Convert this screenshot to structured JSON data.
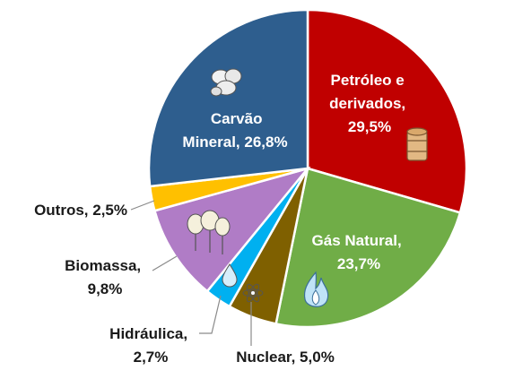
{
  "chart_data": {
    "type": "pie",
    "title": "",
    "start_angle_deg": 0,
    "direction": "clockwise",
    "slices": [
      {
        "label": "Petróleo e derivados, 29,5%",
        "value": 29.5,
        "color": "#C00000",
        "label_color": "#ffffff",
        "icon": "oil-barrel-icon"
      },
      {
        "label": "Gás Natural, 23,7%",
        "value": 23.7,
        "color": "#70AD47",
        "label_color": "#ffffff",
        "icon": "flame-icon"
      },
      {
        "label": "Nuclear, 5,0%",
        "value": 5.0,
        "color": "#7F6000",
        "label_color": "#1a1a1a",
        "icon": "atom-icon"
      },
      {
        "label": "Hidráulica, 2,7%",
        "value": 2.7,
        "color": "#00B0F0",
        "label_color": "#1a1a1a",
        "icon": "water-drop-icon"
      },
      {
        "label": "Biomassa, 9,8%",
        "value": 9.8,
        "color": "#B07CC6",
        "label_color": "#1a1a1a",
        "icon": "trees-icon"
      },
      {
        "label": "Outros, 2,5%",
        "value": 2.5,
        "color": "#FFC000",
        "label_color": "#1a1a1a",
        "icon": null
      },
      {
        "label": "Carvão Mineral, 26,8%",
        "value": 26.8,
        "color": "#2E5E8E",
        "label_color": "#ffffff",
        "icon": "coal-lumps-icon"
      }
    ]
  }
}
